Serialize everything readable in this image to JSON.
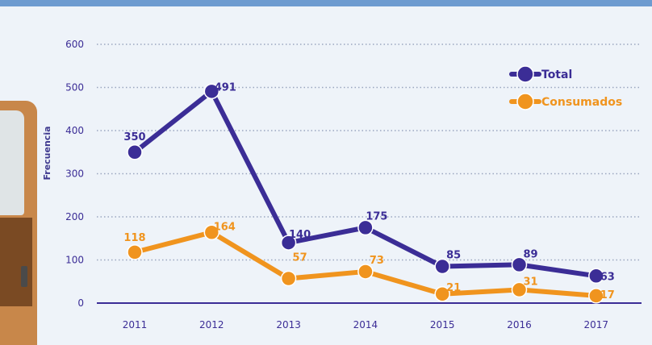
{
  "chart_data": {
    "type": "line",
    "categories": [
      "2011",
      "2012",
      "2013",
      "2014",
      "2015",
      "2016",
      "2017"
    ],
    "series": [
      {
        "name": "Total",
        "values": [
          350,
          491,
          140,
          175,
          85,
          89,
          63
        ],
        "color": "#3b2d96"
      },
      {
        "name": "Consumados",
        "values": [
          118,
          164,
          57,
          73,
          21,
          31,
          17
        ],
        "color": "#f0941e"
      }
    ],
    "ylabel": "Frecuencia",
    "ylim": [
      0,
      600
    ],
    "yticks": [
      600,
      500,
      400,
      300,
      200,
      100,
      0
    ],
    "grid": "dotted",
    "legend_position": "top-right",
    "axis_color": "#3b2d96"
  }
}
